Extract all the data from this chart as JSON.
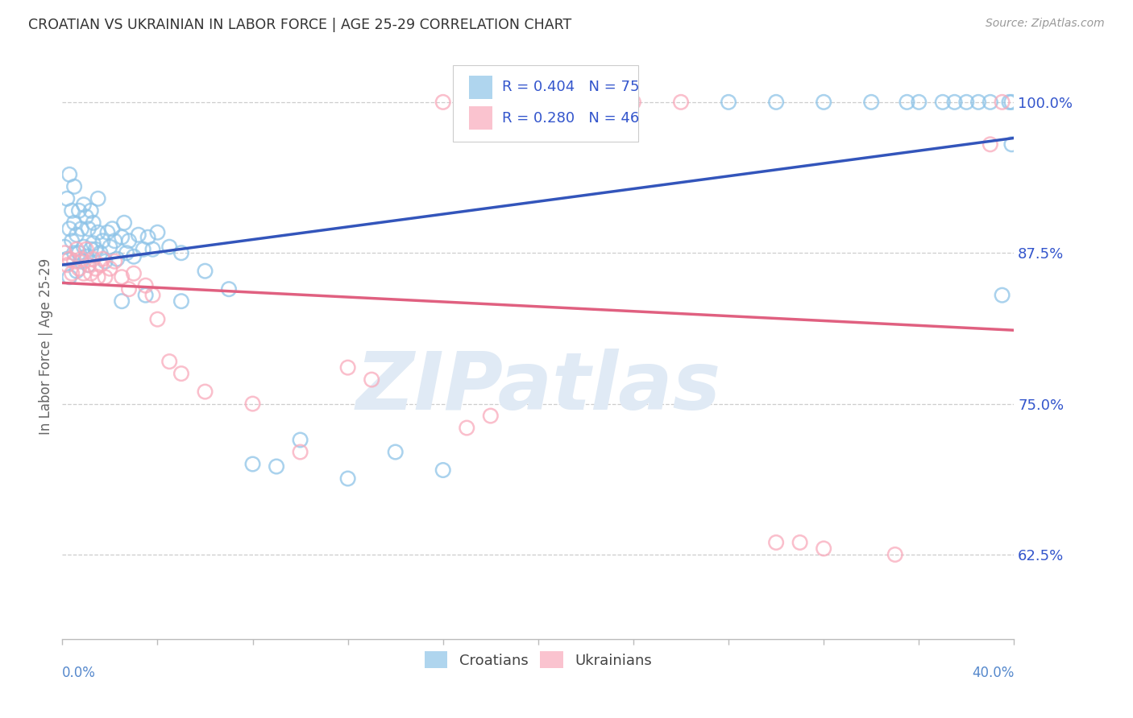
{
  "title": "CROATIAN VS UKRAINIAN IN LABOR FORCE | AGE 25-29 CORRELATION CHART",
  "source": "Source: ZipAtlas.com",
  "ylabel": "In Labor Force | Age 25-29",
  "ytick_labels": [
    "62.5%",
    "75.0%",
    "87.5%",
    "100.0%"
  ],
  "ytick_values": [
    0.625,
    0.75,
    0.875,
    1.0
  ],
  "xmin": 0.0,
  "xmax": 0.4,
  "ymin": 0.555,
  "ymax": 1.04,
  "croatian_R": 0.404,
  "croatian_N": 75,
  "ukrainian_R": 0.28,
  "ukrainian_N": 46,
  "blue_scatter_color": "#8EC4E8",
  "blue_line_color": "#3355BB",
  "pink_scatter_color": "#F9AABB",
  "pink_line_color": "#E06080",
  "legend_text_color": "#3355CC",
  "background_color": "#FFFFFF",
  "grid_color": "#C8C8C8",
  "title_color": "#333333",
  "axis_label_color": "#666666",
  "yaxis_tick_color": "#3355CC",
  "watermark_color": "#E0EAF5",
  "xtick_color": "#AAAAAA",
  "bottom_label_color": "#5588CC"
}
